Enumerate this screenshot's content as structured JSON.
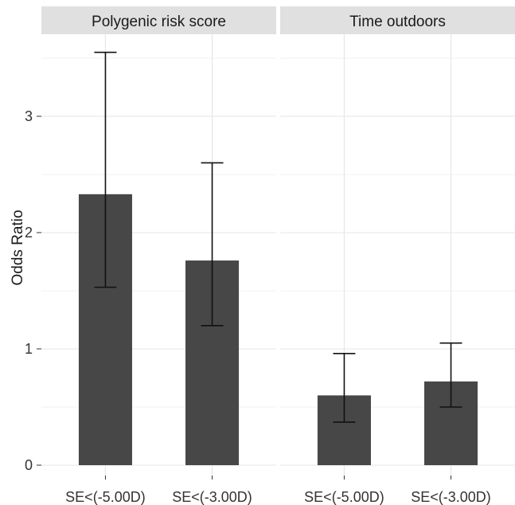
{
  "chart_data": {
    "type": "bar",
    "ylabel": "Odds Ratio",
    "ylim": [
      0,
      3.75
    ],
    "yticks": [
      "0",
      "1",
      "2",
      "3"
    ],
    "categories": [
      "SE<(-5.00D)",
      "SE<(-3.00D)"
    ],
    "grid": true,
    "bar_color": "#474747",
    "panel_background": "#ffffff",
    "gridline_color": "#e5e5e5",
    "strip_background": "#e0e0e0",
    "panels": [
      {
        "title": "Polygenic risk score",
        "values": [
          2.33,
          1.76
        ],
        "error_low": [
          1.53,
          1.2
        ],
        "error_high": [
          3.55,
          2.6
        ]
      },
      {
        "title": "Time outdoors",
        "values": [
          0.6,
          0.72
        ],
        "error_low": [
          0.37,
          0.5
        ],
        "error_high": [
          0.96,
          1.05
        ]
      }
    ]
  }
}
